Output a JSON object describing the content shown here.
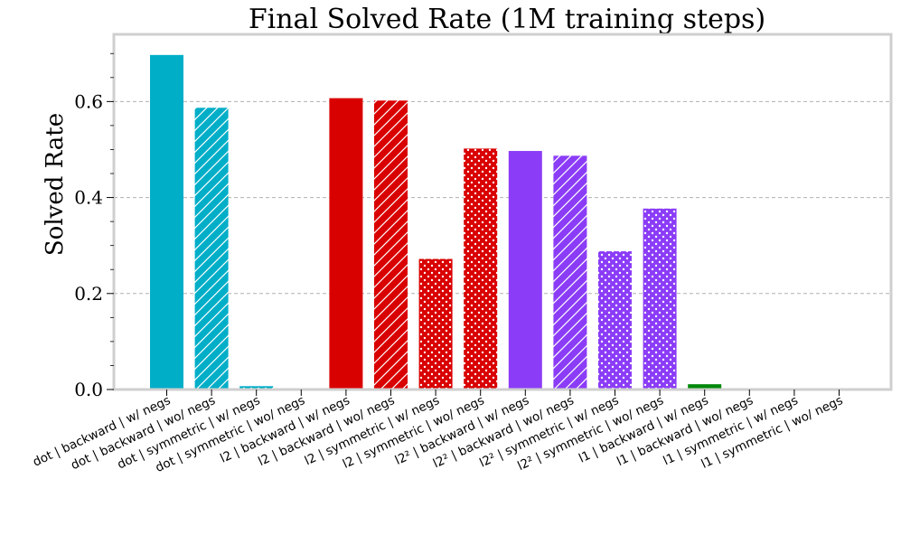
{
  "chart_data": {
    "type": "bar",
    "title": "Final Solved Rate (1M training steps)",
    "xlabel": "",
    "ylabel": "Solved Rate",
    "ylim": [
      0,
      0.74
    ],
    "yticks": [
      "0.0",
      "0.2",
      "0.4",
      "0.6"
    ],
    "ytick_values": [
      0,
      0.2,
      0.4,
      0.6
    ],
    "grid": "y-dashed",
    "colors": {
      "dot": "#00aec8",
      "l2": "#d90000",
      "l2sq": "#8b3cf7",
      "l1": "#00880a"
    },
    "categories": [
      "dot | backward | w/ negs",
      "dot | backward | wo/ negs",
      "dot | symmetric | w/ negs",
      "dot | symmetric | wo/ negs",
      "l2 | backward | w/ negs",
      "l2 | backward | wo/ negs",
      "l2 | symmetric | w/ negs",
      "l2 | symmetric | wo/ negs",
      "l2² | backward | w/ negs",
      "l2² | backward | wo/ negs",
      "l2² | symmetric | w/ negs",
      "l2² | symmetric | wo/ negs",
      "l1 | backward | w/ negs",
      "l1 | backward | wo/ negs",
      "l1 | symmetric | w/ negs",
      "l1 | symmetric | wo/ negs"
    ],
    "values": [
      0.697,
      0.587,
      0.007,
      0.002,
      0.607,
      0.602,
      0.272,
      0.502,
      0.497,
      0.487,
      0.288,
      0.377,
      0.011,
      0.002,
      0.0,
      0.0
    ],
    "bar_colors": [
      "dot",
      "dot",
      "dot",
      "dot",
      "l2",
      "l2",
      "l2",
      "l2",
      "l2sq",
      "l2sq",
      "l2sq",
      "l2sq",
      "l1",
      "l1",
      "l1",
      "l1"
    ],
    "bar_patterns": [
      "solid",
      "hatch",
      "dots",
      "hatch",
      "solid",
      "hatch",
      "dots",
      "dots",
      "solid",
      "hatch",
      "dots",
      "dots",
      "solid",
      "hatch",
      "dots",
      "hatch"
    ]
  }
}
